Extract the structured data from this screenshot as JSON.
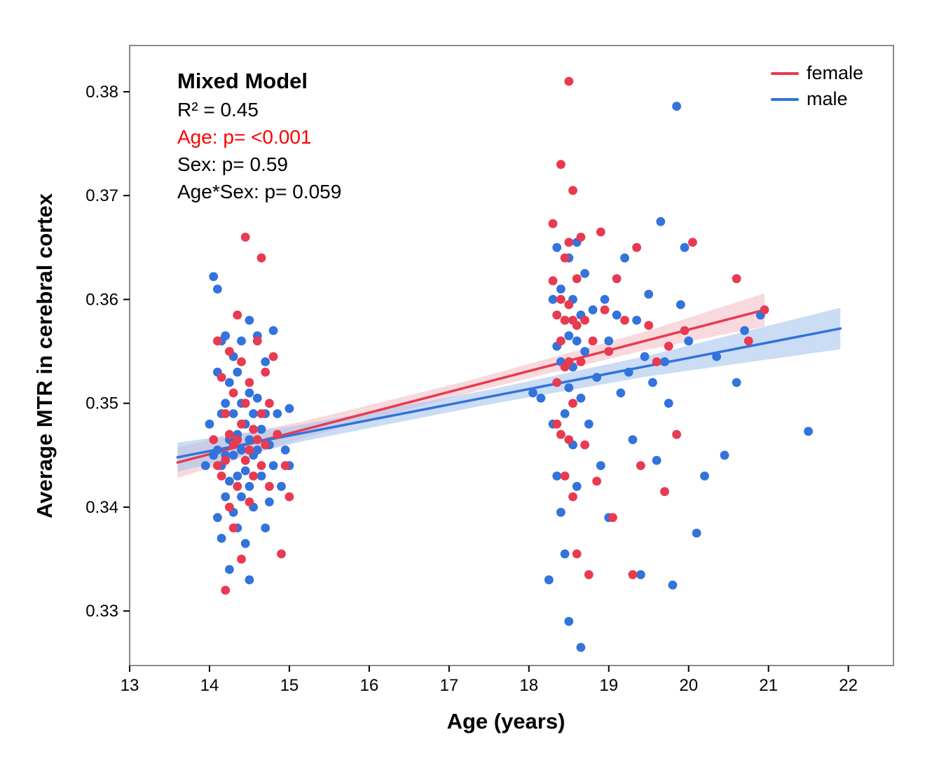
{
  "chart_data": {
    "type": "scatter",
    "title": "",
    "xlabel": "Age (years)",
    "ylabel": "Average MTR in cerebral cortex",
    "xlim": [
      13,
      22.565
    ],
    "ylim": [
      0.32475,
      0.38445
    ],
    "xticks": [
      13,
      14,
      15,
      16,
      17,
      18,
      19,
      20,
      21,
      22
    ],
    "yticks": [
      0.33,
      0.34,
      0.35,
      0.36,
      0.37,
      0.38
    ],
    "grid": false,
    "frame_color": "#8a8a8a",
    "tick_color": "#000000",
    "legend_position": "top-right",
    "legend": [
      {
        "label": "female",
        "color": "#e83a50"
      },
      {
        "label": "male",
        "color": "#3273dc"
      }
    ],
    "annotations": {
      "lines": [
        {
          "text": "Mixed Model",
          "bold": true,
          "color": "#000000"
        },
        {
          "text": "R² = 0.45",
          "color": "#000000"
        },
        {
          "text": "Age: p= <0.001",
          "color": "#fe0000"
        },
        {
          "text": "Sex: p= 0.59",
          "color": "#000000"
        },
        {
          "text": "Age*Sex: p= 0.059",
          "color": "#000000"
        }
      ]
    },
    "series": [
      {
        "name": "female",
        "color": "#e83a50",
        "band_color": "#f3b9c1",
        "band_opacity": 0.55,
        "fit": {
          "x": [
            13.6,
            20.95
          ],
          "y": [
            0.3443,
            0.359
          ]
        },
        "band": {
          "x": [
            13.6,
            15.2,
            17.3,
            19.5,
            20.95
          ],
          "y": [
            0.3443,
            0.3475,
            0.3517,
            0.3561,
            0.359
          ],
          "off": [
            0.0015,
            0.0008,
            0.0006,
            0.0009,
            0.0016
          ]
        },
        "points": [
          [
            14.05,
            0.3465
          ],
          [
            14.1,
            0.356
          ],
          [
            14.1,
            0.344
          ],
          [
            14.15,
            0.3525
          ],
          [
            14.15,
            0.343
          ],
          [
            14.2,
            0.349
          ],
          [
            14.2,
            0.3445
          ],
          [
            14.2,
            0.332
          ],
          [
            14.25,
            0.355
          ],
          [
            14.25,
            0.347
          ],
          [
            14.25,
            0.34
          ],
          [
            14.3,
            0.351
          ],
          [
            14.3,
            0.346
          ],
          [
            14.3,
            0.338
          ],
          [
            14.35,
            0.3585
          ],
          [
            14.35,
            0.3465
          ],
          [
            14.35,
            0.342
          ],
          [
            14.4,
            0.354
          ],
          [
            14.4,
            0.348
          ],
          [
            14.4,
            0.335
          ],
          [
            14.45,
            0.366
          ],
          [
            14.45,
            0.35
          ],
          [
            14.45,
            0.3445
          ],
          [
            14.5,
            0.352
          ],
          [
            14.5,
            0.3455
          ],
          [
            14.5,
            0.3405
          ],
          [
            14.55,
            0.3475
          ],
          [
            14.55,
            0.343
          ],
          [
            14.6,
            0.356
          ],
          [
            14.6,
            0.3465
          ],
          [
            14.65,
            0.364
          ],
          [
            14.65,
            0.349
          ],
          [
            14.65,
            0.344
          ],
          [
            14.7,
            0.353
          ],
          [
            14.7,
            0.346
          ],
          [
            14.75,
            0.35
          ],
          [
            14.75,
            0.342
          ],
          [
            14.8,
            0.3545
          ],
          [
            14.85,
            0.347
          ],
          [
            14.9,
            0.3355
          ],
          [
            14.95,
            0.344
          ],
          [
            15.0,
            0.341
          ],
          [
            18.3,
            0.3673
          ],
          [
            18.3,
            0.3618
          ],
          [
            18.35,
            0.3585
          ],
          [
            18.35,
            0.352
          ],
          [
            18.35,
            0.348
          ],
          [
            18.4,
            0.373
          ],
          [
            18.4,
            0.36
          ],
          [
            18.4,
            0.356
          ],
          [
            18.4,
            0.347
          ],
          [
            18.45,
            0.364
          ],
          [
            18.45,
            0.358
          ],
          [
            18.45,
            0.3535
          ],
          [
            18.45,
            0.343
          ],
          [
            18.5,
            0.381
          ],
          [
            18.5,
            0.3655
          ],
          [
            18.5,
            0.3595
          ],
          [
            18.5,
            0.354
          ],
          [
            18.5,
            0.3465
          ],
          [
            18.55,
            0.3705
          ],
          [
            18.55,
            0.358
          ],
          [
            18.55,
            0.35
          ],
          [
            18.55,
            0.341
          ],
          [
            18.6,
            0.362
          ],
          [
            18.6,
            0.3575
          ],
          [
            18.6,
            0.3355
          ],
          [
            18.65,
            0.366
          ],
          [
            18.65,
            0.354
          ],
          [
            18.7,
            0.358
          ],
          [
            18.7,
            0.346
          ],
          [
            18.75,
            0.3335
          ],
          [
            18.8,
            0.356
          ],
          [
            18.85,
            0.3425
          ],
          [
            18.9,
            0.3665
          ],
          [
            18.95,
            0.359
          ],
          [
            19.0,
            0.355
          ],
          [
            19.05,
            0.339
          ],
          [
            19.1,
            0.362
          ],
          [
            19.2,
            0.358
          ],
          [
            19.3,
            0.3335
          ],
          [
            19.35,
            0.365
          ],
          [
            19.4,
            0.344
          ],
          [
            19.5,
            0.3575
          ],
          [
            19.6,
            0.354
          ],
          [
            19.7,
            0.3415
          ],
          [
            19.75,
            0.3555
          ],
          [
            19.85,
            0.347
          ],
          [
            19.95,
            0.357
          ],
          [
            20.05,
            0.3655
          ],
          [
            20.6,
            0.362
          ],
          [
            20.75,
            0.356
          ],
          [
            20.95,
            0.359
          ]
        ]
      },
      {
        "name": "male",
        "color": "#3273dc",
        "band_color": "#a9c5ef",
        "band_opacity": 0.6,
        "fit": {
          "x": [
            13.6,
            21.9
          ],
          "y": [
            0.3448,
            0.3572
          ]
        },
        "band": {
          "x": [
            13.6,
            15.2,
            17.5,
            19.5,
            21.9
          ],
          "y": [
            0.3448,
            0.3472,
            0.3506,
            0.3536,
            0.3572
          ],
          "off": [
            0.0014,
            0.0008,
            0.0007,
            0.001,
            0.002
          ]
        },
        "points": [
          [
            13.95,
            0.344
          ],
          [
            14.0,
            0.348
          ],
          [
            14.05,
            0.3622
          ],
          [
            14.05,
            0.345
          ],
          [
            14.1,
            0.361
          ],
          [
            14.1,
            0.353
          ],
          [
            14.1,
            0.3455
          ],
          [
            14.1,
            0.339
          ],
          [
            14.15,
            0.356
          ],
          [
            14.15,
            0.349
          ],
          [
            14.15,
            0.344
          ],
          [
            14.15,
            0.337
          ],
          [
            14.2,
            0.3565
          ],
          [
            14.2,
            0.35
          ],
          [
            14.2,
            0.345
          ],
          [
            14.2,
            0.341
          ],
          [
            14.25,
            0.352
          ],
          [
            14.25,
            0.3465
          ],
          [
            14.25,
            0.3425
          ],
          [
            14.25,
            0.334
          ],
          [
            14.3,
            0.3545
          ],
          [
            14.3,
            0.349
          ],
          [
            14.3,
            0.345
          ],
          [
            14.3,
            0.3395
          ],
          [
            14.35,
            0.353
          ],
          [
            14.35,
            0.347
          ],
          [
            14.35,
            0.343
          ],
          [
            14.35,
            0.338
          ],
          [
            14.4,
            0.356
          ],
          [
            14.4,
            0.35
          ],
          [
            14.4,
            0.3455
          ],
          [
            14.4,
            0.341
          ],
          [
            14.45,
            0.348
          ],
          [
            14.45,
            0.3435
          ],
          [
            14.45,
            0.3365
          ],
          [
            14.5,
            0.358
          ],
          [
            14.5,
            0.351
          ],
          [
            14.5,
            0.3465
          ],
          [
            14.5,
            0.342
          ],
          [
            14.5,
            0.333
          ],
          [
            14.55,
            0.349
          ],
          [
            14.55,
            0.345
          ],
          [
            14.55,
            0.34
          ],
          [
            14.6,
            0.3565
          ],
          [
            14.6,
            0.3505
          ],
          [
            14.6,
            0.3455
          ],
          [
            14.65,
            0.3475
          ],
          [
            14.65,
            0.343
          ],
          [
            14.7,
            0.354
          ],
          [
            14.7,
            0.349
          ],
          [
            14.7,
            0.338
          ],
          [
            14.75,
            0.346
          ],
          [
            14.75,
            0.3405
          ],
          [
            14.8,
            0.357
          ],
          [
            14.8,
            0.344
          ],
          [
            14.85,
            0.349
          ],
          [
            14.9,
            0.342
          ],
          [
            14.95,
            0.3455
          ],
          [
            15.0,
            0.3495
          ],
          [
            15.0,
            0.344
          ],
          [
            18.05,
            0.351
          ],
          [
            18.15,
            0.3505
          ],
          [
            18.25,
            0.333
          ],
          [
            18.3,
            0.36
          ],
          [
            18.3,
            0.348
          ],
          [
            18.35,
            0.365
          ],
          [
            18.35,
            0.3555
          ],
          [
            18.35,
            0.343
          ],
          [
            18.4,
            0.361
          ],
          [
            18.4,
            0.354
          ],
          [
            18.4,
            0.3395
          ],
          [
            18.45,
            0.358
          ],
          [
            18.45,
            0.349
          ],
          [
            18.45,
            0.3355
          ],
          [
            18.5,
            0.364
          ],
          [
            18.5,
            0.3565
          ],
          [
            18.5,
            0.3515
          ],
          [
            18.5,
            0.329
          ],
          [
            18.55,
            0.36
          ],
          [
            18.55,
            0.3535
          ],
          [
            18.55,
            0.346
          ],
          [
            18.6,
            0.3655
          ],
          [
            18.6,
            0.356
          ],
          [
            18.6,
            0.342
          ],
          [
            18.65,
            0.3585
          ],
          [
            18.65,
            0.3505
          ],
          [
            18.65,
            0.3265
          ],
          [
            18.7,
            0.3625
          ],
          [
            18.7,
            0.355
          ],
          [
            18.75,
            0.348
          ],
          [
            18.8,
            0.359
          ],
          [
            18.85,
            0.3525
          ],
          [
            18.9,
            0.344
          ],
          [
            18.95,
            0.36
          ],
          [
            19.0,
            0.356
          ],
          [
            19.0,
            0.339
          ],
          [
            19.1,
            0.3585
          ],
          [
            19.15,
            0.351
          ],
          [
            19.2,
            0.364
          ],
          [
            19.25,
            0.353
          ],
          [
            19.3,
            0.3465
          ],
          [
            19.35,
            0.358
          ],
          [
            19.4,
            0.3335
          ],
          [
            19.45,
            0.3545
          ],
          [
            19.5,
            0.3605
          ],
          [
            19.55,
            0.352
          ],
          [
            19.6,
            0.3445
          ],
          [
            19.65,
            0.3675
          ],
          [
            19.7,
            0.354
          ],
          [
            19.75,
            0.35
          ],
          [
            19.8,
            0.3325
          ],
          [
            19.85,
            0.3786
          ],
          [
            19.9,
            0.3595
          ],
          [
            19.95,
            0.365
          ],
          [
            20.0,
            0.356
          ],
          [
            20.1,
            0.3375
          ],
          [
            20.2,
            0.343
          ],
          [
            20.35,
            0.3545
          ],
          [
            20.45,
            0.345
          ],
          [
            20.6,
            0.352
          ],
          [
            20.7,
            0.357
          ],
          [
            20.9,
            0.3585
          ],
          [
            21.5,
            0.3473
          ]
        ]
      }
    ]
  }
}
